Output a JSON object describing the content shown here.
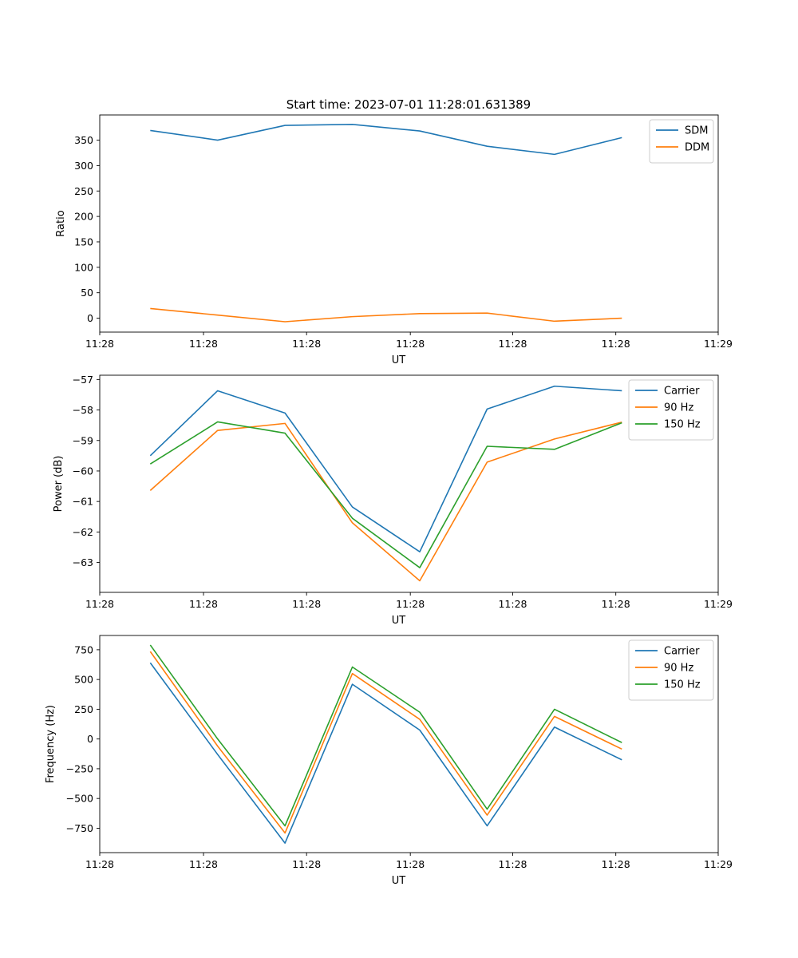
{
  "figure": {
    "title": "Start time: 2023-07-01 11:28:01.631389"
  },
  "chart_data": [
    {
      "type": "line",
      "title": "Start time: 2023-07-01 11:28:01.631389",
      "xlabel": "UT",
      "ylabel": "Ratio",
      "x": [
        0,
        1,
        2,
        3,
        4,
        5,
        6,
        7
      ],
      "xlim": [
        -0.75,
        8.43
      ],
      "xticks": [
        -0.75,
        0.79,
        2.32,
        3.86,
        5.38,
        6.91,
        8.43
      ],
      "xtick_labels": [
        "11:28",
        "11:28",
        "11:28",
        "11:28",
        "11:28",
        "11:28",
        "11:29"
      ],
      "ylim": [
        -27.4,
        399.5
      ],
      "yticks": [
        0,
        50,
        100,
        150,
        200,
        250,
        300,
        350
      ],
      "ytick_labels": [
        "0",
        "50",
        "100",
        "150",
        "200",
        "250",
        "300",
        "350"
      ],
      "legend": "top-right",
      "series": [
        {
          "name": "SDM",
          "color": "#1f77b4",
          "values": [
            369,
            350,
            379,
            381,
            368,
            338,
            322,
            355
          ]
        },
        {
          "name": "DDM",
          "color": "#ff7f0e",
          "values": [
            19,
            6,
            -7,
            3,
            9,
            10,
            -6,
            0
          ]
        }
      ]
    },
    {
      "type": "line",
      "title": "",
      "xlabel": "UT",
      "ylabel": "Power (dB)",
      "x": [
        0,
        1,
        2,
        3,
        4,
        5,
        6,
        7
      ],
      "xlim": [
        -0.75,
        8.43
      ],
      "xticks": [
        -0.75,
        0.79,
        2.32,
        3.86,
        5.38,
        6.91,
        8.43
      ],
      "xtick_labels": [
        "11:28",
        "11:28",
        "11:28",
        "11:28",
        "11:28",
        "11:28",
        "11:29"
      ],
      "ylim": [
        -63.98,
        -56.86
      ],
      "yticks": [
        -63,
        -62,
        -61,
        -60,
        -59,
        -58,
        -57
      ],
      "ytick_labels": [
        "−63",
        "−62",
        "−61",
        "−60",
        "−59",
        "−58",
        "−57"
      ],
      "legend": "top-right",
      "series": [
        {
          "name": "Carrier",
          "color": "#1f77b4",
          "values": [
            -59.5,
            -57.37,
            -58.1,
            -61.18,
            -62.65,
            -57.97,
            -57.22,
            -57.37
          ]
        },
        {
          "name": "90 Hz",
          "color": "#ff7f0e",
          "values": [
            -60.64,
            -58.67,
            -58.44,
            -61.7,
            -63.6,
            -59.71,
            -58.95,
            -58.4
          ]
        },
        {
          "name": "150 Hz",
          "color": "#2ca02c",
          "values": [
            -59.77,
            -58.39,
            -58.76,
            -61.55,
            -63.17,
            -59.19,
            -59.29,
            -58.42
          ]
        }
      ]
    },
    {
      "type": "line",
      "title": "",
      "xlabel": "UT",
      "ylabel": "Frequency (Hz)",
      "x": [
        0,
        1,
        2,
        3,
        4,
        5,
        6,
        7
      ],
      "xlim": [
        -0.75,
        8.43
      ],
      "xticks": [
        -0.75,
        0.79,
        2.32,
        3.86,
        5.38,
        6.91,
        8.43
      ],
      "xtick_labels": [
        "11:28",
        "11:28",
        "11:28",
        "11:28",
        "11:28",
        "11:28",
        "11:29"
      ],
      "ylim": [
        -955,
        870
      ],
      "yticks": [
        -750,
        -500,
        -250,
        0,
        250,
        500,
        750
      ],
      "ytick_labels": [
        "−750",
        "−500",
        "−250",
        "0",
        "250",
        "500",
        "750"
      ],
      "legend": "top-right",
      "series": [
        {
          "name": "Carrier",
          "color": "#1f77b4",
          "values": [
            640,
            -130,
            -875,
            460,
            75,
            -730,
            100,
            -175
          ]
        },
        {
          "name": "90 Hz",
          "color": "#ff7f0e",
          "values": [
            735,
            -60,
            -790,
            550,
            165,
            -640,
            190,
            -85
          ]
        },
        {
          "name": "150 Hz",
          "color": "#2ca02c",
          "values": [
            790,
            0,
            -730,
            605,
            225,
            -590,
            250,
            -30
          ]
        }
      ]
    }
  ]
}
